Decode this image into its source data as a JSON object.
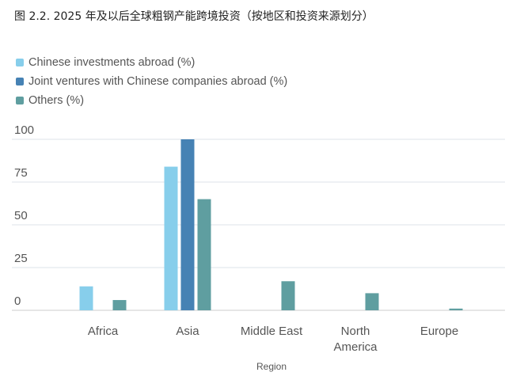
{
  "figure": {
    "title": "图 2.2. 2025 年及以后全球粗钢产能跨境投资（按地区和投资来源划分）"
  },
  "chart_data": {
    "type": "bar",
    "categories": [
      [
        "Africa"
      ],
      [
        "Asia"
      ],
      [
        "Middle East"
      ],
      [
        "North",
        "America"
      ],
      [
        "Europe"
      ]
    ],
    "series": [
      {
        "name": "Chinese investments abroad (%)",
        "color": "#87ceeb",
        "values": [
          14,
          84,
          0,
          0,
          0
        ]
      },
      {
        "name": "Joint ventures with Chinese companies abroad (%)",
        "color": "#4682b4",
        "values": [
          0,
          100,
          0,
          0,
          0
        ]
      },
      {
        "name": "Others (%)",
        "color": "#5f9ea0",
        "values": [
          6,
          65,
          17,
          10,
          1
        ]
      }
    ],
    "xlabel": "Region",
    "ylabel": "",
    "ylim": [
      0,
      100
    ],
    "yticks": [
      0,
      25,
      50,
      75,
      100
    ],
    "grid": true,
    "legend_position": "top-left"
  }
}
